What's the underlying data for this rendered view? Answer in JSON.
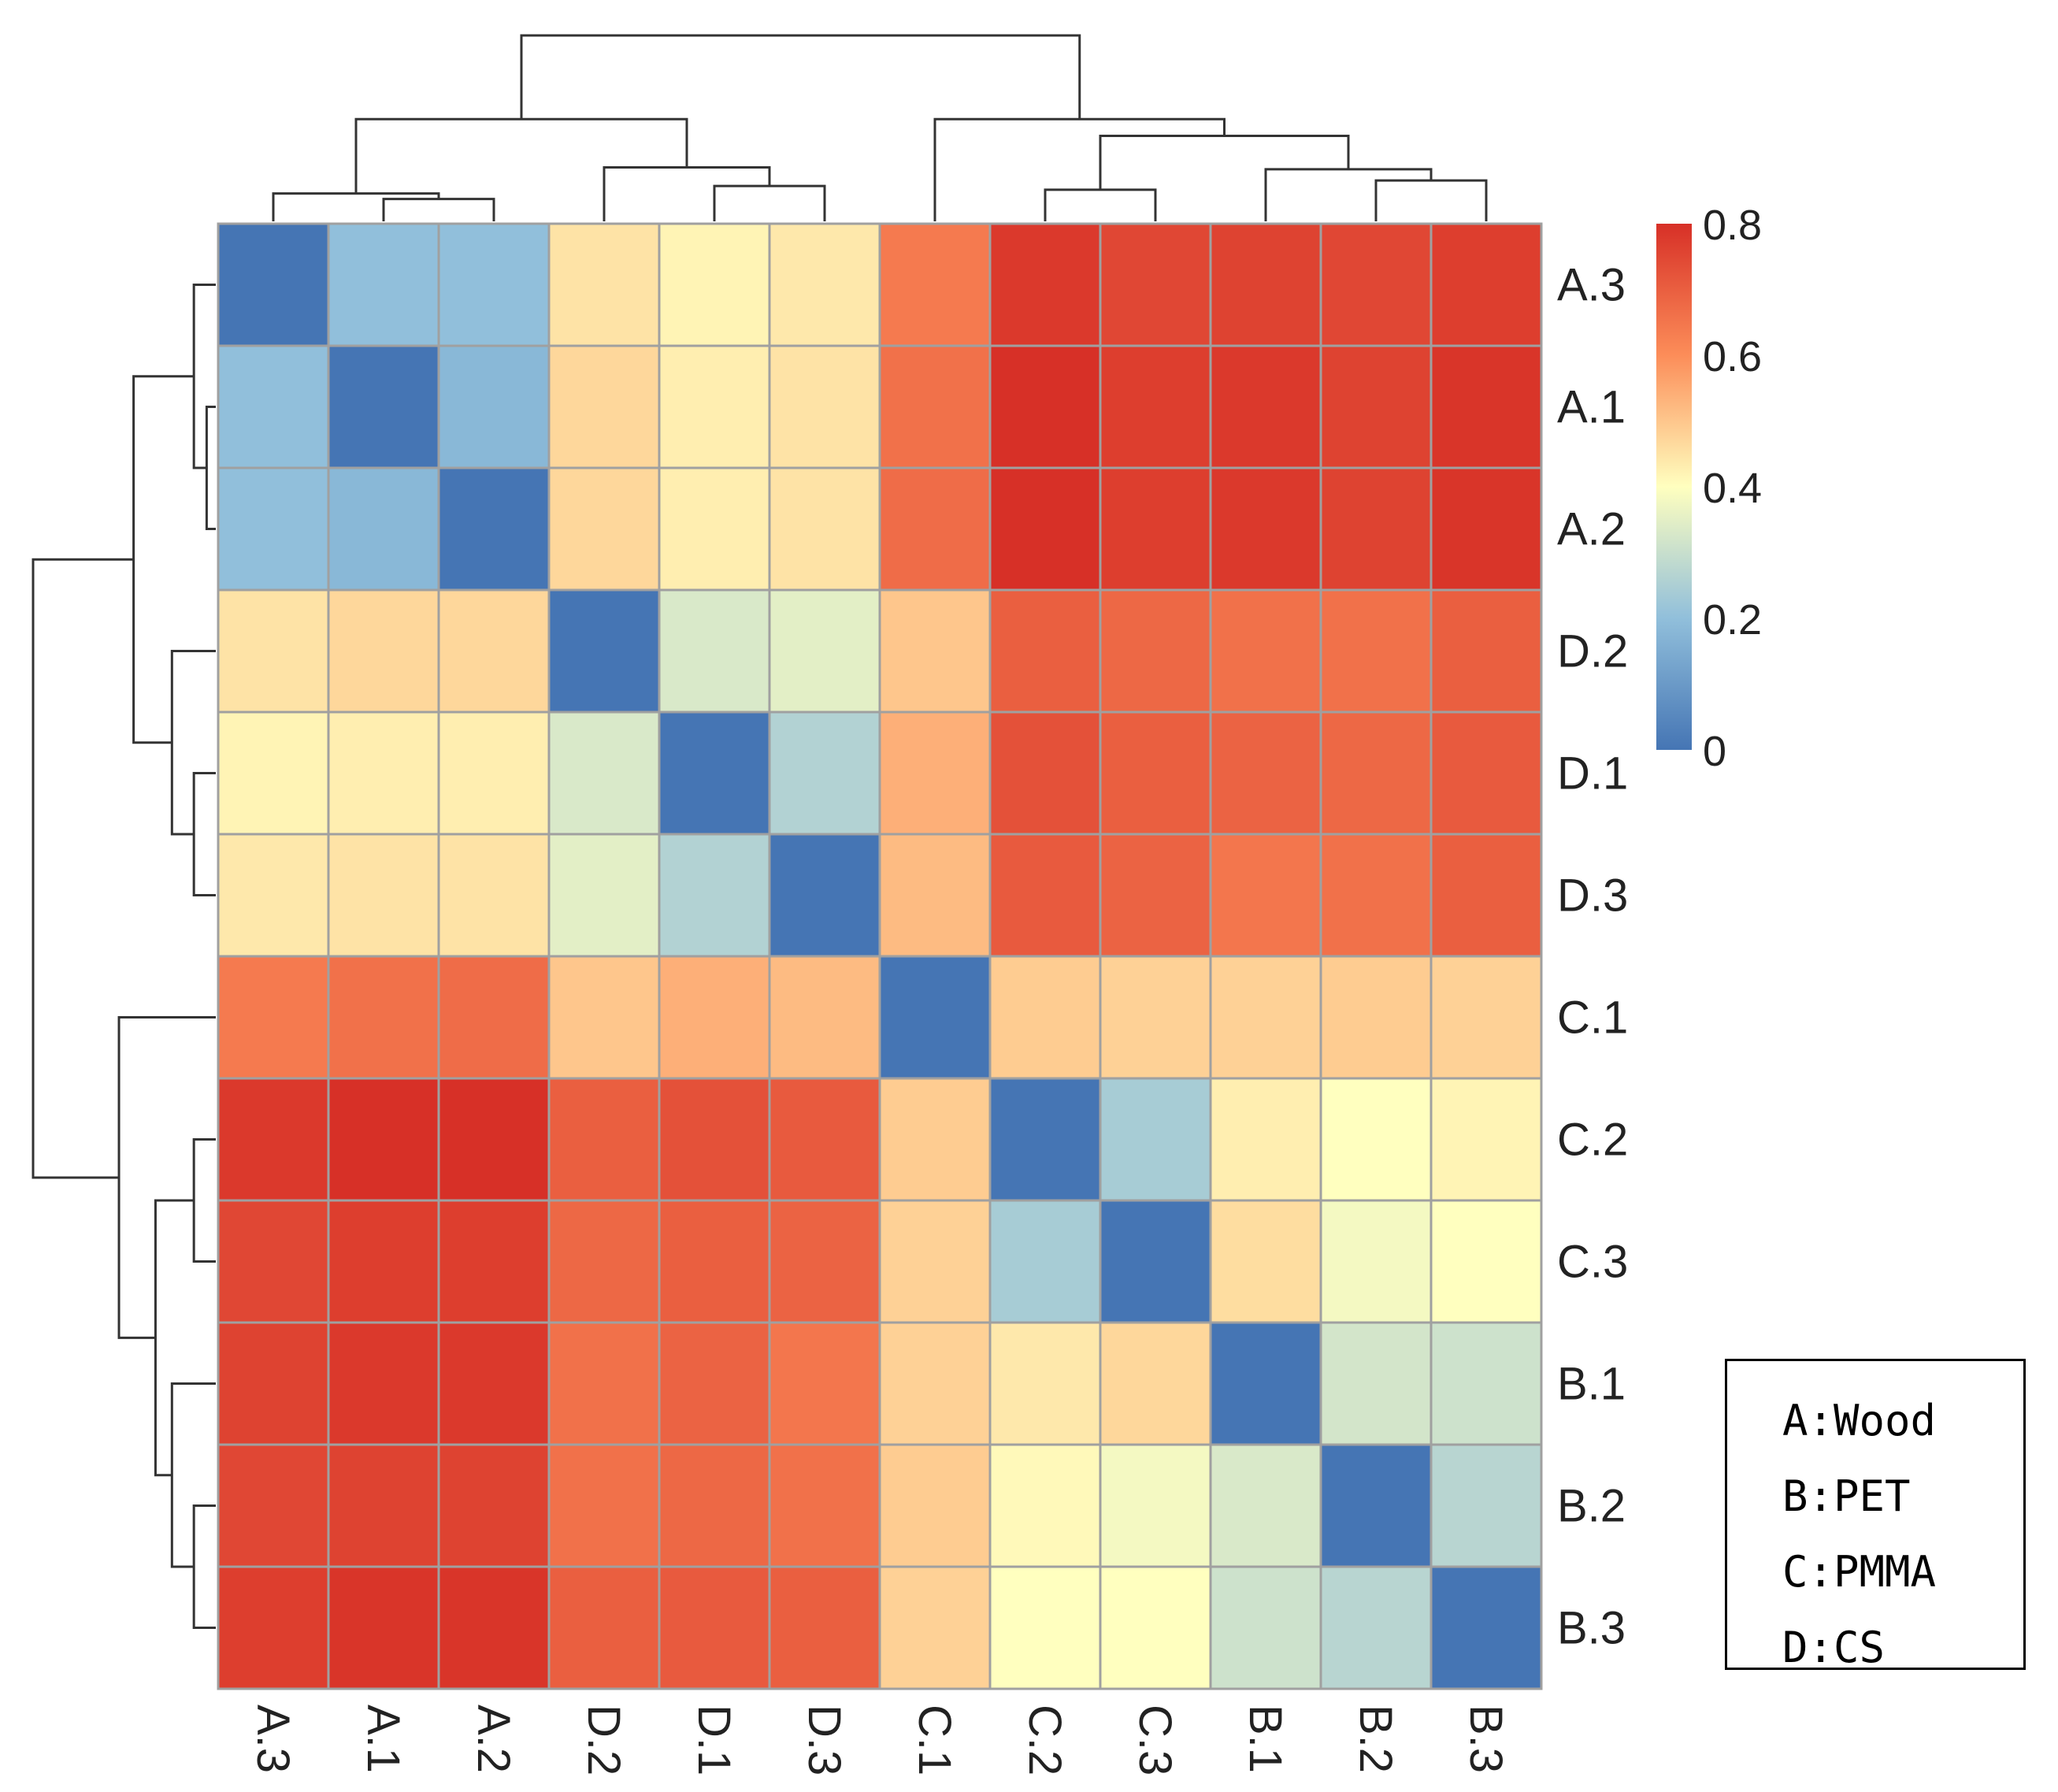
{
  "chart_data": {
    "type": "heatmap",
    "title": "",
    "row_labels": [
      "A.3",
      "A.1",
      "A.2",
      "D.2",
      "D.1",
      "D.3",
      "C.1",
      "C.2",
      "C.3",
      "B.1",
      "B.2",
      "B.3"
    ],
    "col_labels": [
      "A.3",
      "A.1",
      "A.2",
      "D.2",
      "D.1",
      "D.3",
      "C.1",
      "C.2",
      "C.3",
      "B.1",
      "B.2",
      "B.3"
    ],
    "values": [
      [
        0.0,
        0.2,
        0.2,
        0.45,
        0.42,
        0.44,
        0.64,
        0.78,
        0.75,
        0.76,
        0.75,
        0.77
      ],
      [
        0.2,
        0.0,
        0.18,
        0.47,
        0.43,
        0.45,
        0.66,
        0.8,
        0.77,
        0.78,
        0.76,
        0.79
      ],
      [
        0.2,
        0.18,
        0.0,
        0.47,
        0.43,
        0.45,
        0.67,
        0.8,
        0.77,
        0.78,
        0.76,
        0.79
      ],
      [
        0.45,
        0.47,
        0.47,
        0.0,
        0.33,
        0.35,
        0.5,
        0.7,
        0.68,
        0.66,
        0.66,
        0.7
      ],
      [
        0.42,
        0.43,
        0.43,
        0.33,
        0.0,
        0.26,
        0.54,
        0.73,
        0.7,
        0.69,
        0.68,
        0.71
      ],
      [
        0.44,
        0.45,
        0.45,
        0.35,
        0.26,
        0.0,
        0.52,
        0.71,
        0.69,
        0.65,
        0.66,
        0.7
      ],
      [
        0.64,
        0.66,
        0.67,
        0.5,
        0.54,
        0.52,
        0.0,
        0.49,
        0.48,
        0.48,
        0.49,
        0.48
      ],
      [
        0.78,
        0.8,
        0.8,
        0.7,
        0.73,
        0.71,
        0.49,
        0.0,
        0.24,
        0.43,
        0.4,
        0.42
      ],
      [
        0.75,
        0.77,
        0.77,
        0.68,
        0.7,
        0.69,
        0.48,
        0.24,
        0.0,
        0.46,
        0.38,
        0.4
      ],
      [
        0.76,
        0.78,
        0.78,
        0.66,
        0.69,
        0.65,
        0.48,
        0.44,
        0.47,
        0.0,
        0.32,
        0.31
      ],
      [
        0.75,
        0.76,
        0.76,
        0.66,
        0.68,
        0.66,
        0.49,
        0.41,
        0.38,
        0.33,
        0.0,
        0.27
      ],
      [
        0.77,
        0.79,
        0.79,
        0.7,
        0.71,
        0.7,
        0.48,
        0.4,
        0.4,
        0.31,
        0.27,
        0.0
      ]
    ],
    "colorbar": {
      "min": 0,
      "max": 0.8,
      "ticks": [
        0,
        0.2,
        0.4,
        0.6,
        0.8
      ],
      "tick_labels": [
        "0",
        "0.2",
        "0.4",
        "0.6",
        "0.8"
      ],
      "colors": [
        "#4575b4",
        "#91bfdb",
        "#ffffbf",
        "#fc8d59",
        "#d73027"
      ]
    },
    "row_dendrogram": [
      {
        "a": 1,
        "b": 2,
        "h": 0.05
      },
      {
        "a": 0,
        "b": "n0",
        "h": 0.12
      },
      {
        "a": 4,
        "b": 5,
        "h": 0.12
      },
      {
        "a": 3,
        "b": "n2",
        "h": 0.24
      },
      {
        "a": "n1",
        "b": "n3",
        "h": 0.45
      },
      {
        "a": 7,
        "b": 8,
        "h": 0.12
      },
      {
        "a": 10,
        "b": 11,
        "h": 0.12
      },
      {
        "a": 9,
        "b": "n6",
        "h": 0.24
      },
      {
        "a": "n5",
        "b": "n7",
        "h": 0.33
      },
      {
        "a": 6,
        "b": "n8",
        "h": 0.53
      },
      {
        "a": "n4",
        "b": "n9",
        "h": 1.0
      }
    ],
    "col_dendrogram": [
      {
        "a": 1,
        "b": 2,
        "h": 0.12
      },
      {
        "a": 0,
        "b": "n0",
        "h": 0.15
      },
      {
        "a": 4,
        "b": 5,
        "h": 0.19
      },
      {
        "a": 3,
        "b": "n2",
        "h": 0.29
      },
      {
        "a": "n1",
        "b": "n3",
        "h": 0.55
      },
      {
        "a": 7,
        "b": 8,
        "h": 0.17
      },
      {
        "a": 10,
        "b": 11,
        "h": 0.22
      },
      {
        "a": 9,
        "b": "n6",
        "h": 0.28
      },
      {
        "a": "n5",
        "b": "n7",
        "h": 0.46
      },
      {
        "a": 6,
        "b": "n8",
        "h": 0.55
      },
      {
        "a": "n4",
        "b": "n9",
        "h": 1.0
      }
    ]
  },
  "legend": {
    "items": [
      "A:Wood",
      "B:PET",
      "C:PMMA",
      "D:CS"
    ]
  }
}
